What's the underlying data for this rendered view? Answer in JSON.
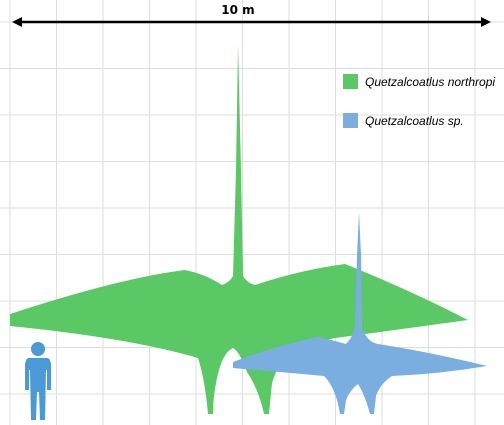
{
  "scale": {
    "label": "10 m"
  },
  "legend": [
    {
      "name": "Quetzalcoatlus northropi",
      "color": "#5ac864"
    },
    {
      "name": "Quetzalcoatlus sp.",
      "color": "#7aaee0"
    }
  ],
  "human": {
    "color": "#4a9ad8"
  }
}
